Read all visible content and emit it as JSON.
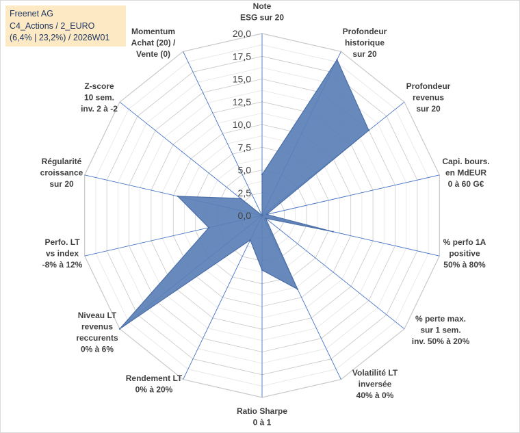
{
  "chart_data": {
    "type": "radar",
    "title_lines": [
      "Freenet AG",
      "C4_Actions / 2_EURO",
      "(6,4% | 23,2%) / 2026W01"
    ],
    "axes": [
      {
        "label_lines": [
          "Note",
          "ESG sur 20"
        ],
        "value": 4.5
      },
      {
        "label_lines": [
          "Profondeur",
          "historique",
          "sur 20"
        ],
        "value": 19.0
      },
      {
        "label_lines": [
          "Profondeur",
          "revenus",
          "sur 20"
        ],
        "value": 15.0
      },
      {
        "label_lines": [
          "Capi. bours.",
          "en MdEUR",
          "0 à 60 G€"
        ],
        "value": 0.5
      },
      {
        "label_lines": [
          "% perfo 1A",
          "positive",
          "50% à 80%"
        ],
        "value": 8.0
      },
      {
        "label_lines": [
          "% perte max.",
          "sur 1 sem.",
          "inv. 50% à 20%"
        ],
        "value": 0.5
      },
      {
        "label_lines": [
          "Volatilité LT",
          "inversée",
          "40% à 0%"
        ],
        "value": 9.0
      },
      {
        "label_lines": [
          "Ratio Sharpe",
          "0 à 1"
        ],
        "value": 6.0
      },
      {
        "label_lines": [
          "Rendement LT",
          "0% à 20%"
        ],
        "value": 3.0
      },
      {
        "label_lines": [
          "Niveau LT",
          "revenus",
          "reccurents",
          "0% à 6%"
        ],
        "value": 20.0
      },
      {
        "label_lines": [
          "Perfo. LT",
          "vs index",
          "-8% à 12%"
        ],
        "value": 6.0
      },
      {
        "label_lines": [
          "Régularité",
          "croissance",
          "sur 20"
        ],
        "value": 9.5
      },
      {
        "label_lines": [
          "Z-score",
          "10 sem.",
          "inv. 2 à -2"
        ],
        "value": 3.0
      },
      {
        "label_lines": [
          "Momentum",
          "Achat (20) /",
          "Vente (0)"
        ],
        "value": 0.0
      }
    ],
    "value_range": [
      0,
      20
    ],
    "tick_values": [
      0,
      2.5,
      5,
      7.5,
      10,
      12.5,
      15,
      17.5,
      20
    ],
    "tick_labels": [
      "0,0",
      "2,5",
      "5,0",
      "7,5",
      "10,0",
      "12,5",
      "15,0",
      "17,5",
      "20,0"
    ],
    "colors": {
      "fill": "#5b7fb5",
      "fill_stroke": "#4a6ea8",
      "grid": "#d9d9d9",
      "spoke": "#4472c4",
      "title_bg": "#fde9c4",
      "title_text": "#1f3864",
      "label_text": "#404040"
    }
  }
}
